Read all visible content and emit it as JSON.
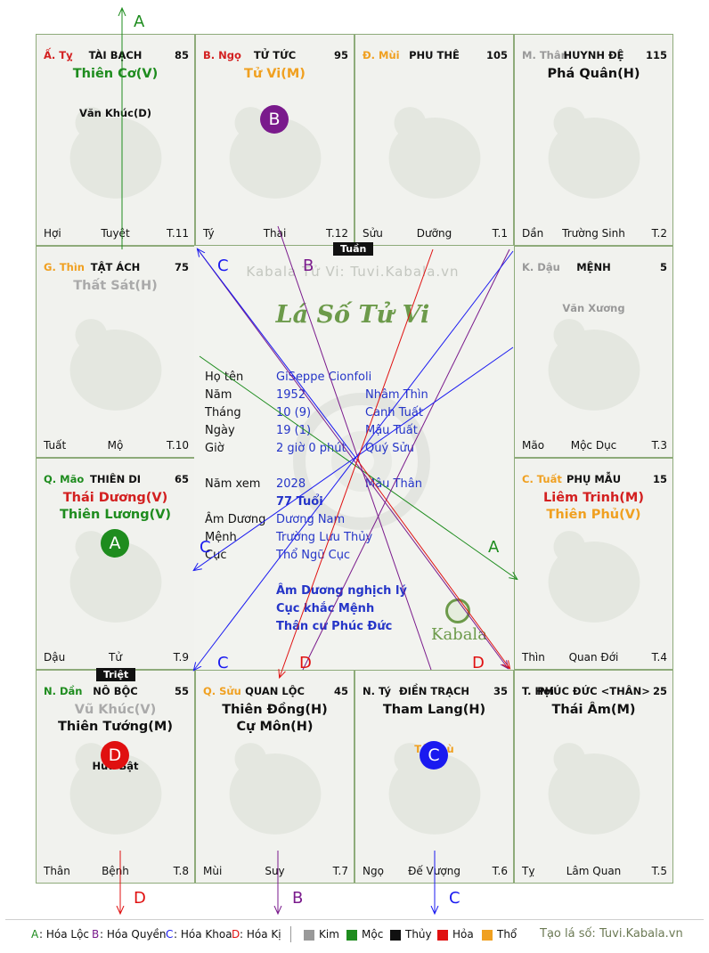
{
  "cells": [
    {
      "id": "ti",
      "can": "Ấ. Tỵ",
      "can_color": "#d32020",
      "name": "TÀI BẠCH",
      "score": "85",
      "main_stars": [
        {
          "text": "Thiên Cơ(V)",
          "color": "#1e8c1e"
        }
      ],
      "minor_stars": [
        {
          "text": "Văn Khúc(D)",
          "color": "#111111"
        }
      ],
      "bottom_left": "Hợi",
      "bottom_center": "Tuyệt",
      "bottom_right": "T.11"
    },
    {
      "id": "ngo",
      "can": "B. Ngọ",
      "can_color": "#d32020",
      "name": "TỬ TỨC",
      "score": "95",
      "main_stars": [
        {
          "text": "Tử Vi(M)",
          "color": "#f0a020"
        }
      ],
      "minor_stars": [],
      "bottom_left": "Tý",
      "bottom_center": "Thai",
      "bottom_right": "T.12"
    },
    {
      "id": "mui",
      "can": "Đ. Mùi",
      "can_color": "#f0a020",
      "name": "PHU THÊ",
      "score": "105",
      "main_stars": [],
      "minor_stars": [],
      "bottom_left": "Sửu",
      "bottom_center": "Dưỡng",
      "bottom_right": "T.1"
    },
    {
      "id": "than",
      "can": "M. Thân",
      "can_color": "#999999",
      "name": "HUYNH ĐỆ",
      "score": "115",
      "main_stars": [
        {
          "text": "Phá Quân(H)",
          "color": "#111111"
        }
      ],
      "minor_stars": [],
      "bottom_left": "Dần",
      "bottom_center": "Trường Sinh",
      "bottom_right": "T.2"
    },
    {
      "id": "thin",
      "can": "G. Thìn",
      "can_color": "#f0a020",
      "name": "TẬT ÁCH",
      "score": "75",
      "main_stars": [
        {
          "text": "Thất Sát(H)",
          "color": "#aaaaaa"
        }
      ],
      "minor_stars": [],
      "bottom_left": "Tuất",
      "bottom_center": "Mộ",
      "bottom_right": "T.10"
    },
    {
      "id": "dau",
      "can": "K. Dậu",
      "can_color": "#999999",
      "name": "MỆNH",
      "score": "5",
      "main_stars": [],
      "minor_stars": [
        {
          "text": "Văn Xương",
          "color": "#999999"
        }
      ],
      "bottom_left": "Mão",
      "bottom_center": "Mộc Dục",
      "bottom_right": "T.3"
    },
    {
      "id": "mao",
      "can": "Q. Mão",
      "can_color": "#1e8c1e",
      "name": "THIÊN DI",
      "score": "65",
      "main_stars": [
        {
          "text": "Thái Dương(V)",
          "color": "#d32020"
        },
        {
          "text": "Thiên Lương(V)",
          "color": "#1e8c1e"
        }
      ],
      "minor_stars": [],
      "bottom_left": "Dậu",
      "bottom_center": "Tử",
      "bottom_right": "T.9"
    },
    {
      "id": "tuat",
      "can": "C. Tuất",
      "can_color": "#f0a020",
      "name": "PHỤ MẪU",
      "score": "15",
      "main_stars": [
        {
          "text": "Liêm Trinh(M)",
          "color": "#d32020"
        },
        {
          "text": "Thiên Phủ(V)",
          "color": "#f0a020"
        }
      ],
      "minor_stars": [],
      "bottom_left": "Thìn",
      "bottom_center": "Quan Đới",
      "bottom_right": "T.4"
    },
    {
      "id": "dan",
      "can": "N. Dần",
      "can_color": "#1e8c1e",
      "name": "NÔ BỘC",
      "score": "55",
      "main_stars": [
        {
          "text": "Vũ Khúc(V)",
          "color": "#aaaaaa"
        },
        {
          "text": "Thiên Tướng(M)",
          "color": "#111111"
        }
      ],
      "minor_stars": [
        {
          "text": "Hữu Bật",
          "color": "#111111"
        }
      ],
      "bottom_left": "Thân",
      "bottom_center": "Bệnh",
      "bottom_right": "T.8"
    },
    {
      "id": "suu",
      "can": "Q. Sửu",
      "can_color": "#f0a020",
      "name": "QUAN LỘC",
      "score": "45",
      "main_stars": [
        {
          "text": "Thiên Đồng(H)",
          "color": "#111111"
        },
        {
          "text": "Cự Môn(H)",
          "color": "#111111"
        }
      ],
      "minor_stars": [],
      "bottom_left": "Mùi",
      "bottom_center": "Suy",
      "bottom_right": "T.7"
    },
    {
      "id": "ty",
      "can": "N. Tý",
      "can_color": "#111111",
      "name": "ĐIỀN TRẠCH",
      "score": "35",
      "main_stars": [
        {
          "text": "Tham Lang(H)",
          "color": "#111111"
        }
      ],
      "minor_stars": [
        {
          "text": "Tả Phù",
          "color": "#f0a020"
        }
      ],
      "bottom_left": "Ngọ",
      "bottom_center": "Đế Vượng",
      "bottom_right": "T.6"
    },
    {
      "id": "hoi",
      "can": "T. Hợi",
      "can_color": "#111111",
      "name": "PHÚC ĐỨC <THÂN>",
      "score": "25",
      "main_stars": [
        {
          "text": "Thái Âm(M)",
          "color": "#111111"
        }
      ],
      "minor_stars": [],
      "bottom_left": "Tỵ",
      "bottom_center": "Lâm Quan",
      "bottom_right": "T.5"
    }
  ],
  "markers": [
    {
      "letter": "B",
      "color": "#7a1a8c",
      "cell": "ngo"
    },
    {
      "letter": "A",
      "color": "#1e8c1e",
      "cell": "mao"
    },
    {
      "letter": "D",
      "color": "#e01010",
      "cell": "dan"
    },
    {
      "letter": "C",
      "color": "#1a1af0",
      "cell": "ty"
    }
  ],
  "center": {
    "watermark": "Kabala Tử Vi: Tuvi.Kabala.vn",
    "title": "Lá Số Tử Vi",
    "tuan": "Tuần",
    "triet": "Triệt",
    "brand": "Kabala",
    "rows": [
      {
        "label": "Họ tên",
        "value": "GiSeppe Cionfoli",
        "extra": ""
      },
      {
        "label": "Năm",
        "value": "1952",
        "extra": "Nhâm Thìn"
      },
      {
        "label": "Tháng",
        "value": "10 (9)",
        "extra": "Canh Tuất"
      },
      {
        "label": "Ngày",
        "value": "19  (1)",
        "extra": "Mậu Tuất"
      },
      {
        "label": "Giờ",
        "value": "2 giờ 0 phút",
        "extra": "Quý Sửu"
      }
    ],
    "nam_xem_label": "Năm xem",
    "nam_xem": "2028",
    "nam_xem_can": "Mậu Thân",
    "tuoi": "77 Tuổi",
    "rows2": [
      {
        "label": "Âm Dương",
        "value": "Dương Nam"
      },
      {
        "label": "Mệnh",
        "value": "Trường Lưu Thủy"
      },
      {
        "label": "Cục",
        "value": "Thổ Ngũ Cục"
      }
    ],
    "notes": [
      "Âm Dương nghịch lý",
      "Cục khắc Mệnh",
      "Thân cư Phúc Đức"
    ]
  },
  "legend": {
    "items": [
      {
        "key": "A",
        "label": ": Hóa Lộc",
        "color": "#1e8c1e"
      },
      {
        "key": "B",
        "label": ": Hóa Quyền",
        "color": "#7a1a8c"
      },
      {
        "key": "C",
        "label": ": Hóa Khoa",
        "color": "#1a1af0"
      },
      {
        "key": "D",
        "label": ": Hóa Kị",
        "color": "#e01010"
      }
    ],
    "elements": [
      {
        "label": "Kim",
        "color": "#999999"
      },
      {
        "label": "Mộc",
        "color": "#1e8c1e"
      },
      {
        "label": "Thủy",
        "color": "#111111"
      },
      {
        "label": "Hỏa",
        "color": "#e01010"
      },
      {
        "label": "Thổ",
        "color": "#f0a020"
      }
    ],
    "credit": "Tạo lá số: Tuvi.Kabala.vn"
  },
  "arrow_labels": {
    "a": "A",
    "b": "B",
    "c": "C",
    "d": "D"
  },
  "colors": {
    "a": "#1e8c1e",
    "b": "#7a1a8c",
    "c": "#1a1af0",
    "d": "#e01010",
    "grid": "#8eab7a"
  }
}
